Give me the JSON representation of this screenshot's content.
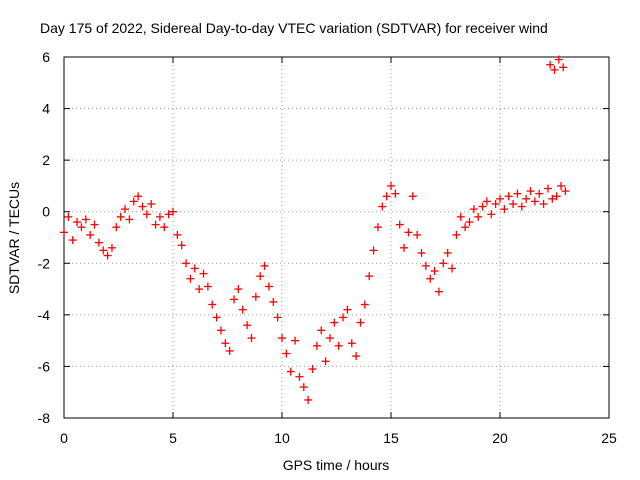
{
  "chart_data": {
    "type": "scatter",
    "title": "Day 175 of 2022, Sidereal Day-to-day VTEC variation (SDTVAR) for receiver wind",
    "xlabel": "GPS time / hours",
    "ylabel": "SDTVAR / TECUs",
    "xlim": [
      0,
      25
    ],
    "ylim": [
      -8,
      6
    ],
    "xticks": [
      0,
      5,
      10,
      15,
      20,
      25
    ],
    "yticks": [
      -8,
      -6,
      -4,
      -2,
      0,
      2,
      4,
      6
    ],
    "grid": true,
    "marker": "+",
    "series": [
      {
        "name": "SDTVAR",
        "color": "#ff0000",
        "x": [
          0.0,
          0.2,
          0.4,
          0.6,
          0.8,
          1.0,
          1.2,
          1.4,
          1.6,
          1.8,
          2.0,
          2.2,
          2.4,
          2.6,
          2.8,
          3.0,
          3.2,
          3.4,
          3.6,
          3.8,
          4.0,
          4.2,
          4.4,
          4.6,
          4.8,
          5.0,
          5.2,
          5.4,
          5.6,
          5.8,
          6.0,
          6.2,
          6.4,
          6.6,
          6.8,
          7.0,
          7.2,
          7.4,
          7.6,
          7.8,
          8.0,
          8.2,
          8.4,
          8.6,
          8.8,
          9.0,
          9.2,
          9.4,
          9.6,
          9.8,
          10.0,
          10.2,
          10.4,
          10.6,
          10.8,
          11.0,
          11.2,
          11.4,
          11.6,
          11.8,
          12.0,
          12.2,
          12.4,
          12.6,
          12.8,
          13.0,
          13.2,
          13.4,
          13.6,
          13.8,
          14.0,
          14.2,
          14.4,
          14.6,
          14.8,
          15.0,
          15.2,
          15.4,
          15.6,
          15.8,
          16.0,
          16.2,
          16.4,
          16.6,
          16.8,
          17.0,
          17.2,
          17.4,
          17.6,
          17.8,
          18.0,
          18.2,
          18.4,
          18.6,
          18.8,
          19.0,
          19.2,
          19.4,
          19.6,
          19.8,
          20.0,
          20.2,
          20.4,
          20.6,
          20.8,
          21.0,
          21.2,
          21.4,
          21.6,
          21.8,
          22.0,
          22.2,
          22.4,
          22.6,
          22.8,
          23.0,
          22.3,
          22.5,
          22.7,
          22.9
        ],
        "y": [
          -0.8,
          -0.2,
          -1.1,
          -0.4,
          -0.6,
          -0.3,
          -0.9,
          -0.5,
          -1.2,
          -1.5,
          -1.7,
          -1.4,
          -0.6,
          -0.2,
          0.1,
          -0.3,
          0.4,
          0.6,
          0.2,
          -0.1,
          0.3,
          -0.5,
          -0.2,
          -0.6,
          -0.1,
          0.0,
          -0.9,
          -1.3,
          -2.0,
          -2.6,
          -2.2,
          -3.0,
          -2.4,
          -2.9,
          -3.6,
          -4.1,
          -4.6,
          -5.1,
          -5.4,
          -3.4,
          -3.0,
          -3.8,
          -4.4,
          -4.9,
          -3.3,
          -2.5,
          -2.1,
          -2.9,
          -3.5,
          -4.1,
          -4.9,
          -5.5,
          -6.2,
          -5.0,
          -6.4,
          -6.8,
          -7.3,
          -6.1,
          -5.2,
          -4.6,
          -5.8,
          -4.9,
          -4.3,
          -5.2,
          -4.1,
          -3.8,
          -5.1,
          -5.6,
          -4.3,
          -3.6,
          -2.5,
          -1.5,
          -0.6,
          0.2,
          0.6,
          1.0,
          0.7,
          -0.5,
          -1.4,
          -0.8,
          0.6,
          -0.9,
          -1.6,
          -2.1,
          -2.6,
          -2.3,
          -3.1,
          -2.0,
          -1.6,
          -2.2,
          -0.9,
          -0.2,
          -0.6,
          -0.4,
          0.1,
          -0.2,
          0.2,
          0.4,
          -0.1,
          0.3,
          0.5,
          0.1,
          0.6,
          0.3,
          0.7,
          0.2,
          0.5,
          0.8,
          0.4,
          0.7,
          0.3,
          0.9,
          0.5,
          0.6,
          1.0,
          0.8,
          5.7,
          5.5,
          5.9,
          5.6
        ]
      }
    ]
  }
}
